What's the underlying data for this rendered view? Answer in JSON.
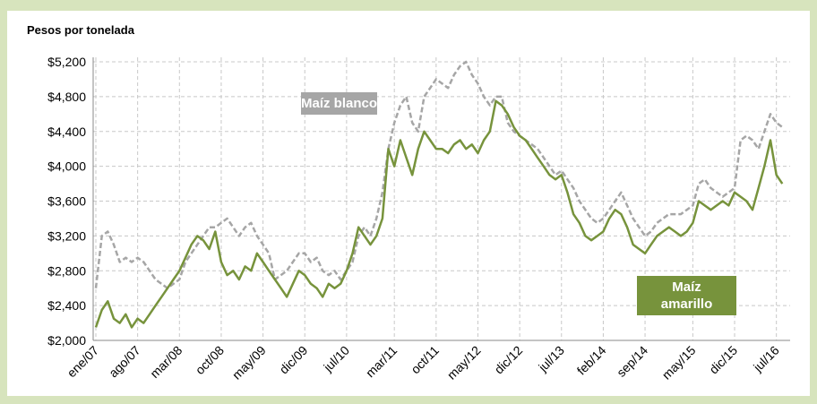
{
  "chart_data": {
    "type": "line",
    "title": "Pesos por tonelada",
    "categories": [
      "ene/07",
      null,
      null,
      null,
      null,
      null,
      null,
      "ago/07",
      null,
      null,
      null,
      null,
      null,
      null,
      "mar/08",
      null,
      null,
      null,
      null,
      null,
      null,
      "oct/08",
      null,
      null,
      null,
      null,
      null,
      null,
      "may/09",
      null,
      null,
      null,
      null,
      null,
      null,
      "dic/09",
      null,
      null,
      null,
      null,
      null,
      null,
      "jul/10",
      null,
      null,
      null,
      null,
      null,
      null,
      null,
      "mar/11",
      null,
      null,
      null,
      null,
      null,
      null,
      "oct/11",
      null,
      null,
      null,
      null,
      null,
      null,
      "may/12",
      null,
      null,
      null,
      null,
      null,
      null,
      "dic/12",
      null,
      null,
      null,
      null,
      null,
      null,
      "jul/13",
      null,
      null,
      null,
      null,
      null,
      null,
      "feb/14",
      null,
      null,
      null,
      null,
      null,
      null,
      "sep/14",
      null,
      null,
      null,
      null,
      null,
      null,
      null,
      "may/15",
      null,
      null,
      null,
      null,
      null,
      null,
      "dic/15",
      null,
      null,
      null,
      null,
      null,
      null,
      "jul/16",
      null
    ],
    "series": [
      {
        "name": "Maíz blanco",
        "color": "#a6a6a6",
        "dashed": true,
        "values": [
          2600,
          3200,
          3250,
          3100,
          2900,
          2950,
          2900,
          2950,
          2900,
          2800,
          2700,
          2650,
          2600,
          2650,
          2700,
          2900,
          3000,
          3100,
          3200,
          3300,
          3300,
          3350,
          3400,
          3300,
          3200,
          3300,
          3350,
          3200,
          3100,
          3000,
          2700,
          2750,
          2800,
          2900,
          3000,
          3000,
          2900,
          2950,
          2800,
          2750,
          2800,
          2700,
          2800,
          2900,
          3200,
          3300,
          3200,
          3400,
          3700,
          4200,
          4500,
          4700,
          4800,
          4500,
          4400,
          4800,
          4900,
          5000,
          4950,
          4900,
          5050,
          5150,
          5200,
          5050,
          4950,
          4800,
          4700,
          4800,
          4800,
          4500,
          4400,
          4350,
          4300,
          4250,
          4200,
          4100,
          4000,
          3900,
          3950,
          3850,
          3750,
          3600,
          3500,
          3400,
          3350,
          3400,
          3500,
          3600,
          3700,
          3550,
          3400,
          3300,
          3200,
          3250,
          3350,
          3400,
          3450,
          3450,
          3450,
          3500,
          3550,
          3800,
          3850,
          3750,
          3700,
          3650,
          3700,
          3750,
          4300,
          4350,
          4300,
          4200,
          4400,
          4600,
          4500,
          4450
        ]
      },
      {
        "name": "Maíz amarillo",
        "color": "#77933c",
        "dashed": false,
        "values": [
          2150,
          2350,
          2450,
          2250,
          2200,
          2300,
          2150,
          2250,
          2200,
          2300,
          2400,
          2500,
          2600,
          2700,
          2800,
          2950,
          3100,
          3200,
          3150,
          3050,
          3250,
          2900,
          2750,
          2800,
          2700,
          2850,
          2800,
          3000,
          2900,
          2800,
          2700,
          2600,
          2500,
          2650,
          2800,
          2750,
          2650,
          2600,
          2500,
          2650,
          2600,
          2650,
          2800,
          3000,
          3300,
          3200,
          3100,
          3200,
          3400,
          4200,
          4000,
          4300,
          4100,
          3900,
          4200,
          4400,
          4300,
          4200,
          4200,
          4150,
          4250,
          4300,
          4200,
          4250,
          4150,
          4300,
          4400,
          4750,
          4700,
          4600,
          4450,
          4350,
          4300,
          4200,
          4100,
          4000,
          3900,
          3850,
          3900,
          3700,
          3450,
          3350,
          3200,
          3150,
          3200,
          3250,
          3400,
          3500,
          3450,
          3300,
          3100,
          3050,
          3000,
          3100,
          3200,
          3250,
          3300,
          3250,
          3200,
          3250,
          3350,
          3600,
          3550,
          3500,
          3550,
          3600,
          3550,
          3700,
          3650,
          3600,
          3500,
          3750,
          4000,
          4300,
          3900,
          3800
        ]
      }
    ],
    "ylim": [
      2000,
      5200
    ],
    "yticks": [
      {
        "value": 2000,
        "label": "$2,000"
      },
      {
        "value": 2400,
        "label": "$2,400"
      },
      {
        "value": 2800,
        "label": "$2,800"
      },
      {
        "value": 3200,
        "label": "$3,200"
      },
      {
        "value": 3600,
        "label": "$3,600"
      },
      {
        "value": 4000,
        "label": "$4,000"
      },
      {
        "value": 4400,
        "label": "$4,400"
      },
      {
        "value": 4800,
        "label": "$4,800"
      },
      {
        "value": 5200,
        "label": "$5,200"
      }
    ],
    "grid": true
  }
}
